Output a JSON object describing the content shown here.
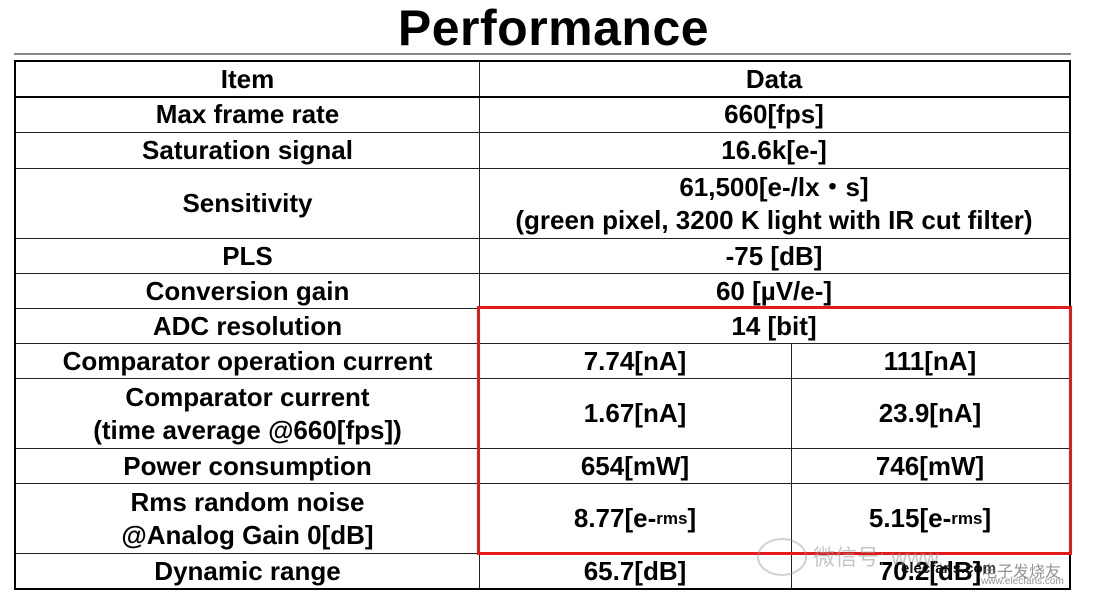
{
  "title": "Performance",
  "header": {
    "item": "Item",
    "data": "Data"
  },
  "rows": [
    {
      "item": "Max frame rate",
      "data": "660[fps]"
    },
    {
      "item": "Saturation signal",
      "data": "16.6k[e-]"
    },
    {
      "item": "Sensitivity",
      "data_line1": "61,500[e-/lx・s]",
      "data_line2": "(green pixel, 3200 K light with IR cut filter)"
    },
    {
      "item": "PLS",
      "data": "-75 [dB]"
    },
    {
      "item": "Conversion gain",
      "data": "60 [µV/e-]"
    },
    {
      "item": "ADC resolution",
      "data": "14 [bit]"
    },
    {
      "item": "Comparator operation current",
      "col1": "7.74[nA]",
      "col2": "111[nA]"
    },
    {
      "item_line1": "Comparator current",
      "item_line2": "(time average @660[fps])",
      "col1": "1.67[nA]",
      "col2": "23.9[nA]"
    },
    {
      "item": "Power consumption",
      "col1": "654[mW]",
      "col2": "746[mW]"
    },
    {
      "item_line1": "Rms random noise",
      "item_line2": "@Analog Gain 0[dB]",
      "col1_main": "8.77[e-",
      "col1_sub": "rms",
      "col1_end": "]",
      "col2_main": "5.15[e-",
      "col2_sub": "rms",
      "col2_end": "]"
    },
    {
      "item": "Dynamic range",
      "col1": "65.7[dB]",
      "col2": "70.2[dB]"
    }
  ],
  "colors": {
    "highlight": "#e11b1b",
    "border": "#000000"
  },
  "watermark": {
    "text": "微信号: www.",
    "site": "elecfans.com",
    "brand": "电子发烧友",
    "url": "www.elecfans.com"
  }
}
